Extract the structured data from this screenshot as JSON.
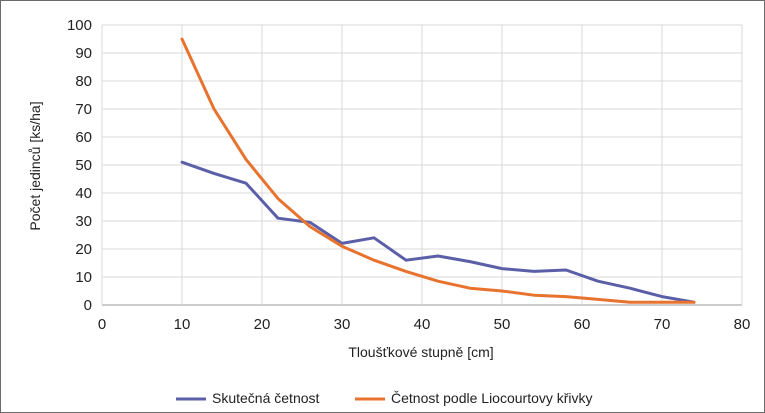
{
  "chart_data": {
    "type": "line",
    "xlabel": "Tloušťkové stupně [cm]",
    "ylabel": "Počet jedinců [ks/ha]",
    "xlim": [
      0,
      80
    ],
    "ylim": [
      0,
      100
    ],
    "x_ticks": [
      0,
      10,
      20,
      30,
      40,
      50,
      60,
      70,
      80
    ],
    "y_ticks": [
      0,
      10,
      20,
      30,
      40,
      50,
      60,
      70,
      80,
      90,
      100
    ],
    "grid": true,
    "legend_position": "bottom",
    "x": [
      10,
      14,
      18,
      22,
      26,
      30,
      34,
      38,
      42,
      46,
      50,
      54,
      58,
      62,
      66,
      70,
      74
    ],
    "series": [
      {
        "name": "Skutečná četnost",
        "color": "#5b5fa8",
        "values": [
          51,
          47,
          43.5,
          31,
          29.5,
          22,
          24,
          16,
          17.5,
          15.5,
          13,
          12,
          12.5,
          8.5,
          6,
          3,
          1
        ]
      },
      {
        "name": "Četnost podle Liocourtovy křivky",
        "color": "#e8732e",
        "values": [
          95,
          70,
          52,
          38,
          28,
          21,
          16,
          12,
          8.5,
          6,
          5,
          3.5,
          3,
          2,
          1,
          1,
          1
        ]
      }
    ]
  }
}
